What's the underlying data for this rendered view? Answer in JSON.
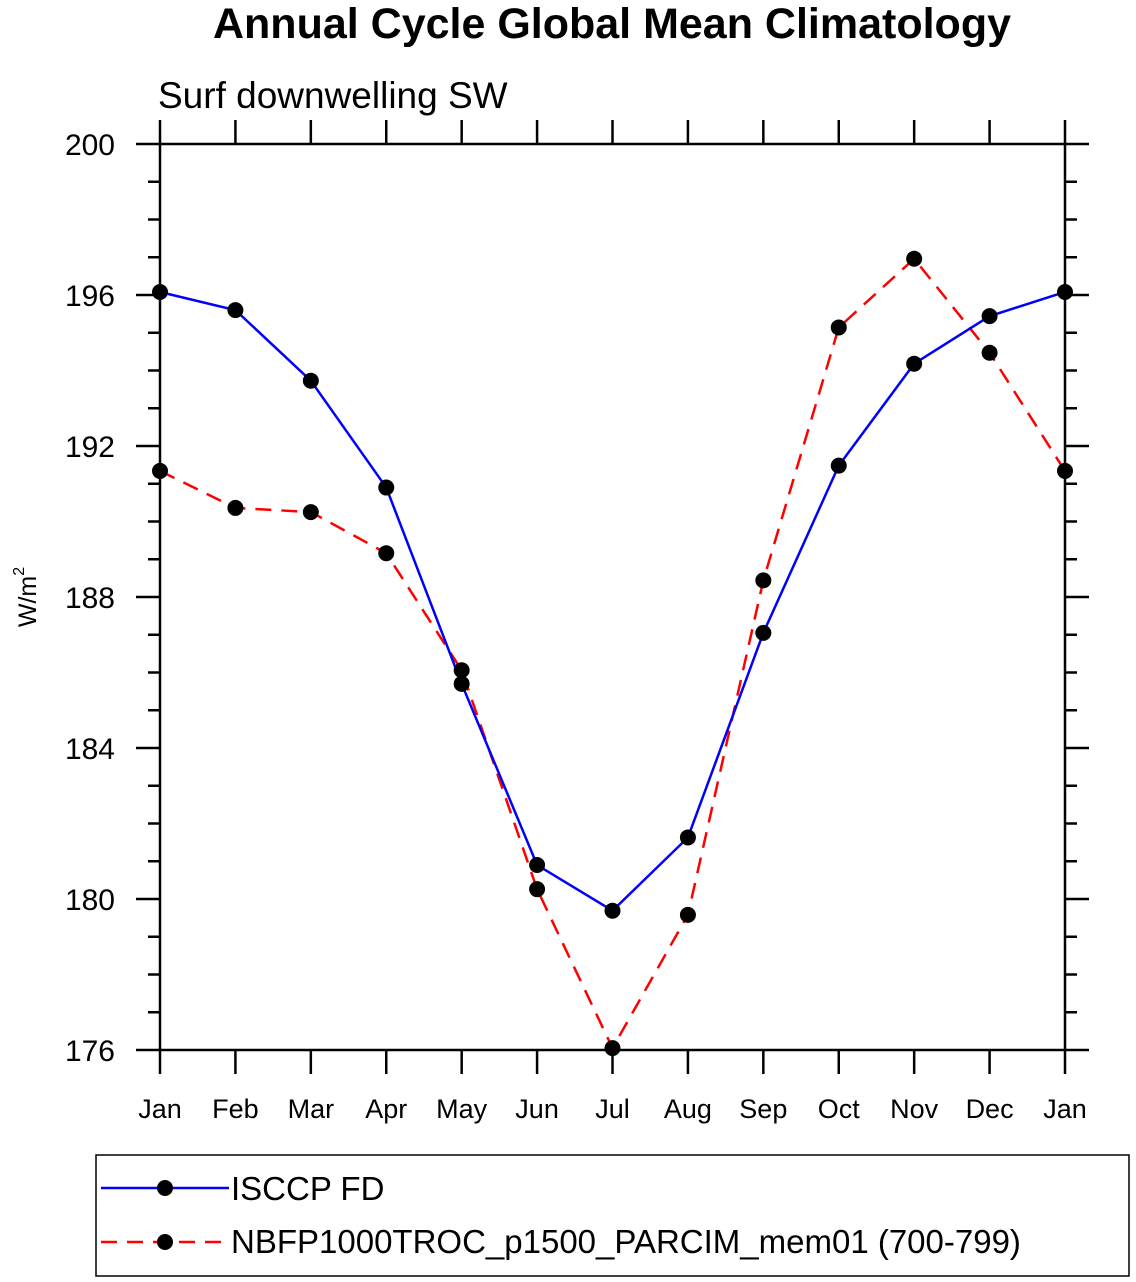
{
  "chart_data": {
    "type": "line",
    "title": "Annual Cycle Global Mean Climatology",
    "subtitle": "Surf downwelling SW",
    "xlabel": "",
    "ylabel": "W/m",
    "ylabel_superscript": "2",
    "categories": [
      "Jan",
      "Feb",
      "Mar",
      "Apr",
      "May",
      "Jun",
      "Jul",
      "Aug",
      "Sep",
      "Oct",
      "Nov",
      "Dec",
      "Jan"
    ],
    "ylim": [
      176,
      200
    ],
    "yticks": [
      176,
      180,
      184,
      188,
      192,
      196,
      200
    ],
    "yminor_step": 1,
    "grid": false,
    "legend_placement": "bottom",
    "series": [
      {
        "name": "ISCCP FD",
        "color": "#0000ff",
        "line_style": "solid",
        "marker": "filled-circle",
        "values": [
          196.08,
          195.6,
          193.73,
          190.9,
          185.7,
          180.9,
          179.69,
          181.63,
          187.05,
          191.48,
          194.18,
          195.44,
          196.08
        ]
      },
      {
        "name": "NBFP1000TROC_p1500_PARCIM_mem01 (700-799)",
        "color": "#ff0000",
        "line_style": "dashed",
        "marker": "filled-circle",
        "values": [
          191.34,
          190.36,
          190.25,
          189.16,
          186.06,
          180.26,
          176.05,
          179.58,
          188.44,
          195.14,
          196.96,
          194.47,
          191.34
        ]
      }
    ]
  }
}
